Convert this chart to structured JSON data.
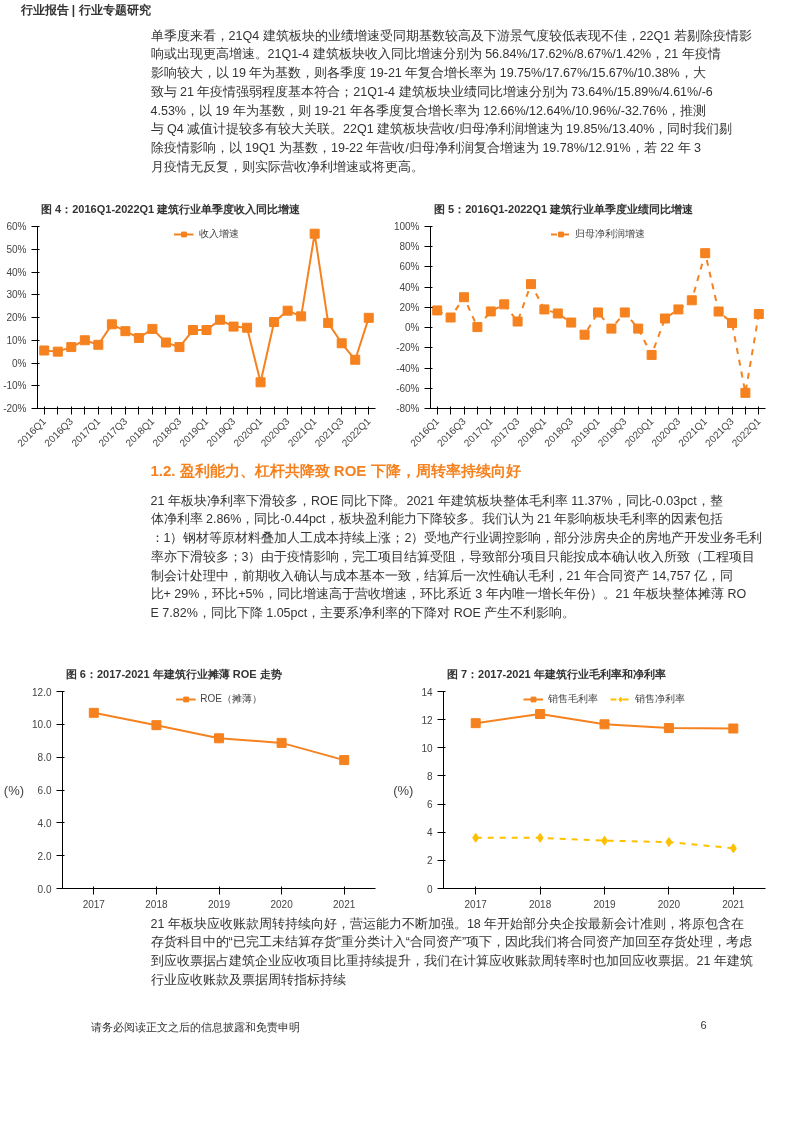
{
  "chart_data": [
    {
      "type": "line",
      "title": "图 4：2016Q1-2022Q1 建筑行业单季度收入同比增速",
      "annotations": [
        "行业报告 | 行业专题研究",
        "单季度来看，21Q4 建筑板块的业绩增速受同期基数较高及下游景气度较低表现不佳，22Q1 若剔除疫情影响或出现更高增速。21Q1-4 建筑板块收入同比增速分别为 56.84%/17.62%/8.67%/1.42%，21 年疫情影响较大，以 19 年为基数，则各季度 19-21 年复合增长率为 19.75%/17.67%/15.67%/10.38%，大致与 21 年疫情强弱程度基本符合；21Q1-4 建筑板块业绩同比增速分别为 73.64%/15.89%/4.61%/-64.53%，以 19 年为基数，则 19-21 年各季度复合增长率为 12.66%/12.64%/10.96%/-32.76%，推测与 Q4 减值计提较多有较大关联。22Q1 建筑板块营收/归母净利润增速为 19.85%/13.40%，同时我们剔除疫情影响，以 19Q1 为基数，19-22 年营收/归母净利润复合增速为 19.78%/12.91%，若 22 年 3 月疫情无反复，则实际营收净利增速或将更高。"
      ],
      "categories": [
        "2016Q1",
        null,
        "2016Q3",
        null,
        "2017Q1",
        null,
        "2017Q3",
        null,
        "2018Q1",
        null,
        "2018Q3",
        null,
        "2019Q1",
        null,
        "2019Q3",
        null,
        "2020Q1",
        null,
        "2020Q3",
        null,
        "2021Q1",
        null,
        "2021Q3",
        null,
        "2022Q1"
      ],
      "series": [
        {
          "name": "收入增速",
          "color": "#f5821f",
          "values": [
            5.5,
            5,
            7,
            10,
            8,
            17,
            14,
            11,
            15,
            9,
            7,
            14.5,
            14.5,
            19,
            16,
            15.5,
            -8.5,
            18,
            23,
            20.5,
            56.84,
            17.62,
            8.67,
            1.42,
            19.85
          ]
        }
      ],
      "ylim": [
        -20,
        60
      ],
      "yticks": [
        {
          "value": -20,
          "label": "-20%"
        },
        {
          "value": -10,
          "label": "-10%"
        },
        {
          "value": 0,
          "label": "0%"
        },
        {
          "value": 10,
          "label": "10%"
        },
        {
          "value": 20,
          "label": "20%"
        },
        {
          "value": 30,
          "label": "30%"
        },
        {
          "value": 40,
          "label": "40%"
        },
        {
          "value": 50,
          "label": "50%"
        },
        {
          "value": 60,
          "label": "60%"
        }
      ],
      "marker": "square",
      "line_style": "solid",
      "legend": "top",
      "grid": false
    },
    {
      "type": "line",
      "title": "图 5：2016Q1-2022Q1 建筑行业单季度业绩同比增速",
      "categories": [
        "2016Q1",
        null,
        "2016Q3",
        null,
        "2017Q1",
        null,
        "2017Q3",
        null,
        "2018Q1",
        null,
        "2018Q3",
        null,
        "2019Q1",
        null,
        "2019Q3",
        null,
        "2020Q1",
        null,
        "2020Q3",
        null,
        "2021Q1",
        null,
        "2021Q3",
        null,
        "2022Q1"
      ],
      "series": [
        {
          "name": "归母净利润增速",
          "color": "#f5821f",
          "values": [
            17,
            10,
            30,
            0.5,
            16,
            23,
            6,
            43,
            18,
            14,
            5,
            -7,
            15,
            -1,
            15,
            -1,
            -27,
            9,
            18,
            27,
            73.64,
            15.89,
            4.61,
            -64.53,
            13.4
          ]
        }
      ],
      "ylim": [
        -80,
        100
      ],
      "yticks": [
        {
          "value": -80,
          "label": "-80%"
        },
        {
          "value": -60,
          "label": "-60%"
        },
        {
          "value": -40,
          "label": "-40%"
        },
        {
          "value": -20,
          "label": "-20%"
        },
        {
          "value": 0,
          "label": "0%"
        },
        {
          "value": 20,
          "label": "20%"
        },
        {
          "value": 40,
          "label": "40%"
        },
        {
          "value": 60,
          "label": "60%"
        },
        {
          "value": 80,
          "label": "80%"
        },
        {
          "value": 100,
          "label": "100%"
        }
      ],
      "marker": "square",
      "line_style": "dashed",
      "legend": "top",
      "grid": false
    },
    {
      "type": "line",
      "title": "图 6：2017-2021 年建筑行业摊薄 ROE 走势",
      "ylabel": "(%)",
      "annotations": [
        "1.2. 盈利能力、杠杆共降致 ROE 下降，周转率持续向好",
        "21 年板块净利率下滑较多，ROE 同比下降。2021 年建筑板块整体毛利率 11.37%，同比-0.03pct，整体净利率 2.86%，同比-0.44pct，板块盈利能力下降较多。我们认为 21 年影响板块毛利率的因素包括：1）钢材等原材料叠加人工成本持续上涨；2）受地产行业调控影响，部分涉房央企的房地产开发业务毛利率亦下滑较多；3）由于疫情影响，完工项目结算受阻，导致部分项目只能按成本确认收入所致（工程项目制会计处理中，前期收入确认与成本基本一致，结算后一次性确认毛利，21 年合同资产 14,757 亿，同比+ 29%，环比+5%，同比增速高于营收增速，环比系近 3 年内唯一增长年份）。21 年板块整体摊薄 ROE 7.82%，同比下降 1.05pct，主要系净利率的下降对 ROE 产生不利影响。"
      ],
      "categories": [
        "2017",
        "2018",
        "2019",
        "2020",
        "2021"
      ],
      "series": [
        {
          "name": "ROE（摊薄）",
          "color": "#f5821f",
          "values": [
            10.7,
            9.95,
            9.15,
            8.87,
            7.82
          ]
        }
      ],
      "ylim": [
        0,
        12
      ],
      "yticks": [
        {
          "value": 0,
          "label": "0.0"
        },
        {
          "value": 2,
          "label": "2.0"
        },
        {
          "value": 4,
          "label": "4.0"
        },
        {
          "value": 6,
          "label": "6.0"
        },
        {
          "value": 8,
          "label": "8.0"
        },
        {
          "value": 10,
          "label": "10.0"
        },
        {
          "value": 12,
          "label": "12.0"
        }
      ],
      "marker": "square",
      "line_style": "solid",
      "legend": "top",
      "grid": false
    },
    {
      "type": "line",
      "title": "图 7：2017-2021 年建筑行业毛利率和净利率",
      "ylabel": "(%)",
      "annotations": [
        "21 年板块应收账款周转持续向好，营运能力不断加强。18 年开始部分央企按最新会计准则，将原包含在存货科目中的“已完工未结算存货”重分类计入“合同资产”项下，因此我们将合同资产加回至存货处理，考虑到应收票据占建筑企业应收项目比重持续提升，我们在计算应收账款周转率时也加回应收票据。21 年建筑行业应收账款及票据周转指标持续",
        "请务必阅读正文之后的信息披露和免责申明",
        "6"
      ],
      "categories": [
        "2017",
        "2018",
        "2019",
        "2020",
        "2021"
      ],
      "series": [
        {
          "name": "销售毛利率",
          "color": "#f5821f",
          "values": [
            11.75,
            12.4,
            11.67,
            11.4,
            11.37
          ],
          "marker": "square",
          "line_style": "solid"
        },
        {
          "name": "销售净利率",
          "color": "#ffc000",
          "values": [
            3.6,
            3.6,
            3.4,
            3.3,
            2.86
          ],
          "marker": "diamond",
          "line_style": "dashed"
        }
      ],
      "ylim": [
        0,
        14
      ],
      "yticks": [
        0,
        2,
        4,
        6,
        8,
        10,
        12,
        14
      ],
      "legend": "top",
      "grid": false
    }
  ]
}
